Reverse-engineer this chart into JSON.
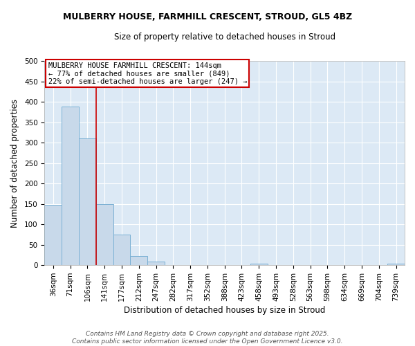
{
  "title": "MULBERRY HOUSE, FARMHILL CRESCENT, STROUD, GL5 4BZ",
  "subtitle": "Size of property relative to detached houses in Stroud",
  "xlabel": "Distribution of detached houses by size in Stroud",
  "ylabel": "Number of detached properties",
  "bar_labels": [
    "36sqm",
    "71sqm",
    "106sqm",
    "141sqm",
    "177sqm",
    "212sqm",
    "247sqm",
    "282sqm",
    "317sqm",
    "352sqm",
    "388sqm",
    "423sqm",
    "458sqm",
    "493sqm",
    "528sqm",
    "563sqm",
    "598sqm",
    "634sqm",
    "669sqm",
    "704sqm",
    "739sqm"
  ],
  "bar_values": [
    147,
    388,
    311,
    150,
    75,
    23,
    9,
    0,
    0,
    1,
    0,
    0,
    4,
    0,
    0,
    0,
    0,
    0,
    0,
    0,
    3
  ],
  "bar_color": "#c8d9ea",
  "bar_edge_color": "#7ab0d4",
  "vline_color": "#cc0000",
  "vline_position": 3.0,
  "ylim": [
    0,
    500
  ],
  "yticks": [
    0,
    50,
    100,
    150,
    200,
    250,
    300,
    350,
    400,
    450,
    500
  ],
  "annotation_line1": "MULBERRY HOUSE FARMHILL CRESCENT: 144sqm",
  "annotation_line2": "← 77% of detached houses are smaller (849)",
  "annotation_line3": "22% of semi-detached houses are larger (247) →",
  "annotation_box_color": "#ffffff",
  "annotation_box_edge": "#cc0000",
  "footer1": "Contains HM Land Registry data © Crown copyright and database right 2025.",
  "footer2": "Contains public sector information licensed under the Open Government Licence v3.0.",
  "fig_bg_color": "#ffffff",
  "plot_bg_color": "#dce9f5",
  "grid_color": "#ffffff",
  "title_fontsize": 9.0,
  "subtitle_fontsize": 8.5,
  "axis_label_fontsize": 8.5,
  "tick_fontsize": 7.5,
  "annotation_fontsize": 7.5,
  "footer_fontsize": 6.5
}
